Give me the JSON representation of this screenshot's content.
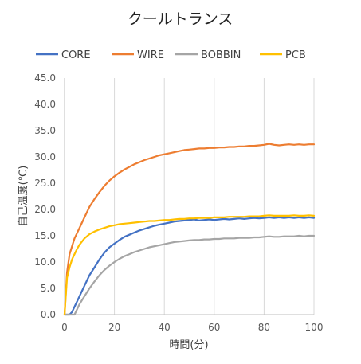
{
  "chart_data": {
    "type": "line",
    "title": "クールトランス",
    "xlabel": "時間(分)",
    "ylabel": "自己温度(℃)",
    "xlim": [
      0,
      100
    ],
    "ylim": [
      0,
      45
    ],
    "x_ticks": [
      0,
      20,
      40,
      60,
      80,
      100
    ],
    "y_ticks": [
      "0.0",
      "5.0",
      "10.0",
      "15.0",
      "20.0",
      "25.0",
      "30.0",
      "35.0",
      "40.0",
      "45.0"
    ],
    "grid": "vertical",
    "legend_position": "top",
    "x": [
      0,
      1,
      2,
      3,
      4,
      5,
      6,
      8,
      10,
      12,
      14,
      16,
      18,
      20,
      22,
      24,
      26,
      28,
      30,
      32,
      34,
      36,
      38,
      40,
      42,
      44,
      46,
      48,
      50,
      52,
      54,
      56,
      58,
      60,
      62,
      64,
      66,
      68,
      70,
      72,
      74,
      76,
      78,
      80,
      82,
      84,
      86,
      88,
      90,
      92,
      94,
      96,
      98,
      100
    ],
    "series": [
      {
        "name": "CORE",
        "color": "#4472C4",
        "values": [
          0.0,
          0.0,
          0.0,
          0.5,
          1.5,
          2.5,
          3.5,
          5.5,
          7.5,
          9.0,
          10.5,
          11.8,
          12.8,
          13.5,
          14.2,
          14.8,
          15.2,
          15.6,
          16.0,
          16.3,
          16.6,
          16.9,
          17.1,
          17.3,
          17.5,
          17.7,
          17.8,
          17.9,
          18.0,
          18.1,
          17.9,
          18.0,
          18.1,
          18.0,
          18.1,
          18.2,
          18.1,
          18.2,
          18.3,
          18.2,
          18.3,
          18.4,
          18.3,
          18.4,
          18.5,
          18.4,
          18.5,
          18.4,
          18.5,
          18.4,
          18.5,
          18.4,
          18.5,
          18.4
        ]
      },
      {
        "name": "WIRE",
        "color": "#ED7D31",
        "values": [
          0.0,
          8.0,
          11.5,
          13.0,
          14.5,
          15.5,
          16.5,
          18.5,
          20.5,
          22.0,
          23.3,
          24.5,
          25.5,
          26.3,
          27.0,
          27.6,
          28.1,
          28.6,
          29.0,
          29.4,
          29.7,
          30.0,
          30.3,
          30.5,
          30.7,
          30.9,
          31.1,
          31.3,
          31.4,
          31.5,
          31.6,
          31.6,
          31.7,
          31.7,
          31.8,
          31.8,
          31.9,
          31.9,
          32.0,
          32.0,
          32.1,
          32.1,
          32.2,
          32.3,
          32.5,
          32.3,
          32.2,
          32.3,
          32.4,
          32.3,
          32.4,
          32.3,
          32.4,
          32.4
        ]
      },
      {
        "name": "BOBBIN",
        "color": "#A5A5A5",
        "values": [
          0.0,
          0.0,
          0.0,
          0.0,
          0.0,
          1.0,
          2.0,
          3.5,
          5.0,
          6.3,
          7.5,
          8.5,
          9.3,
          10.0,
          10.6,
          11.1,
          11.5,
          11.9,
          12.2,
          12.5,
          12.8,
          13.0,
          13.2,
          13.4,
          13.6,
          13.8,
          13.9,
          14.0,
          14.1,
          14.2,
          14.2,
          14.3,
          14.3,
          14.4,
          14.4,
          14.5,
          14.5,
          14.5,
          14.6,
          14.6,
          14.6,
          14.7,
          14.7,
          14.8,
          14.9,
          14.8,
          14.8,
          14.9,
          14.9,
          14.9,
          15.0,
          14.9,
          15.0,
          15.0
        ]
      },
      {
        "name": "PCB",
        "color": "#FFC000",
        "values": [
          0.0,
          7.0,
          9.0,
          10.5,
          11.5,
          12.5,
          13.3,
          14.5,
          15.3,
          15.8,
          16.2,
          16.5,
          16.8,
          17.0,
          17.2,
          17.3,
          17.4,
          17.5,
          17.6,
          17.7,
          17.8,
          17.8,
          17.9,
          18.0,
          18.0,
          18.1,
          18.2,
          18.2,
          18.3,
          18.3,
          18.4,
          18.4,
          18.4,
          18.5,
          18.5,
          18.5,
          18.6,
          18.6,
          18.6,
          18.6,
          18.7,
          18.7,
          18.7,
          18.8,
          18.9,
          18.8,
          18.8,
          18.8,
          18.8,
          18.9,
          18.8,
          18.8,
          18.9,
          18.8
        ]
      }
    ]
  }
}
